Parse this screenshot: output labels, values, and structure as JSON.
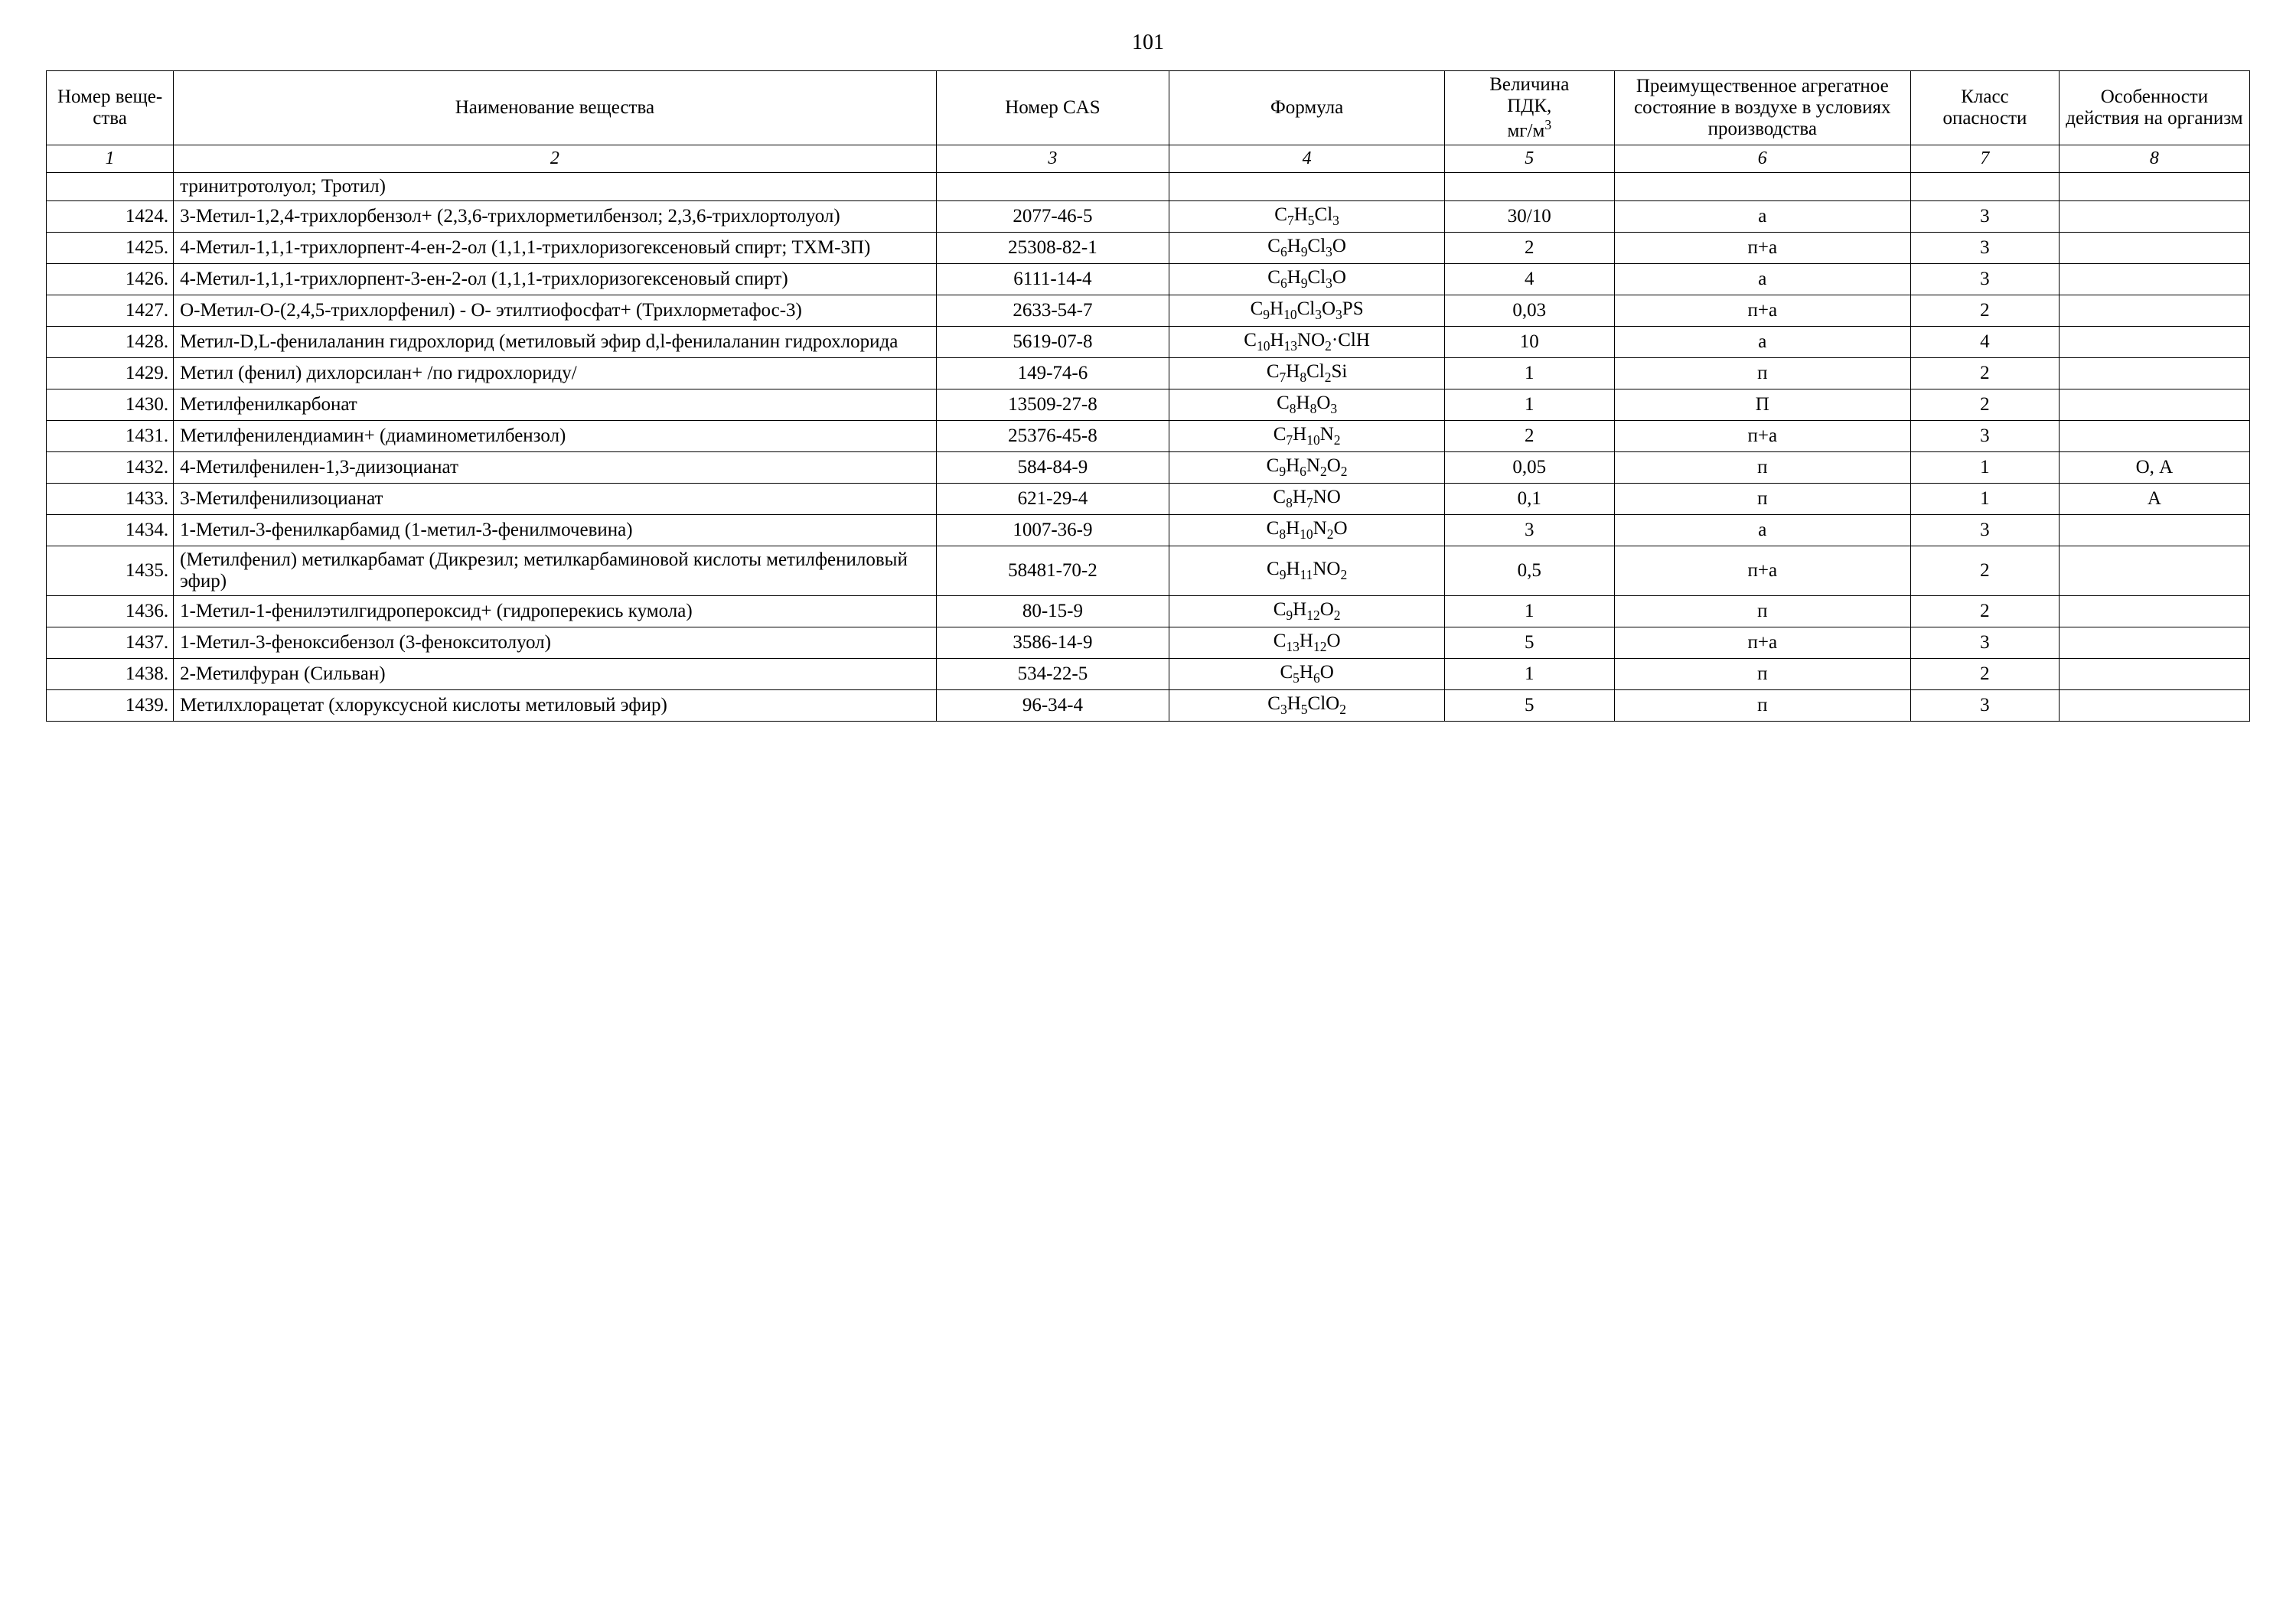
{
  "page_number": "101",
  "table": {
    "headers": {
      "col1": "Номер веще­ства",
      "col2": "Наименование вещества",
      "col3": "Номер CAS",
      "col4": "Формула",
      "col5_line1": "Величина",
      "col5_line2": "ПДК,",
      "col5_line3": "мг/м",
      "col5_sup": "3",
      "col6": "Преимущественное агрегатное состояние в воздухе в условиях производства",
      "col7": "Класс опасности",
      "col8": "Особенности действия на организм"
    },
    "colnums": [
      "1",
      "2",
      "3",
      "4",
      "5",
      "6",
      "7",
      "8"
    ],
    "rows": [
      {
        "n": "",
        "name": "тринитротолуол; Тротил)",
        "cas": "",
        "formula": "",
        "pdk": "",
        "state": "",
        "class": "",
        "eff": ""
      },
      {
        "n": "1424.",
        "name": "3-Метил-1,2,4-трихлорбензол+ (2,3,6-трихлорметилбензол; 2,3,6-трихлортолуол)",
        "cas": "2077-46-5",
        "formula": "C<sub>7</sub>H<sub>5</sub>Cl<sub>3</sub>",
        "pdk": "30/10",
        "state": "а",
        "class": "3",
        "eff": ""
      },
      {
        "n": "1425.",
        "name": "4-Метил-1,1,1-трихлорпент-4-ен-2-ол (1,1,1-трихлоризогексеновый спирт; ТХМ-3П)",
        "cas": "25308-82-1",
        "formula": "C<sub>6</sub>H<sub>9</sub>Cl<sub>3</sub>O",
        "pdk": "2",
        "state": "п+а",
        "class": "3",
        "eff": ""
      },
      {
        "n": "1426.",
        "name": "4-Метил-1,1,1-трихлорпент-3-ен-2-ол (1,1,1-трихлоризогексеновый спирт)",
        "cas": "6111-14-4",
        "formula": "C<sub>6</sub>H<sub>9</sub>Cl<sub>3</sub>O",
        "pdk": "4",
        "state": "а",
        "class": "3",
        "eff": ""
      },
      {
        "n": "1427.",
        "name": "О-Метил-О-(2,4,5-трихлорфенил) - О- этилтио­фосфат+ (Трихлорметафос-3)",
        "cas": "2633-54-7",
        "formula": "C<sub>9</sub>H<sub>10</sub>Cl<sub>3</sub>O<sub>3</sub>PS",
        "pdk": "0,03",
        "state": "п+а",
        "class": "2",
        "eff": ""
      },
      {
        "n": "1428.",
        "name": "Метил-D,L-фенилаланин гидрохлорид (метиловый эфир d,l-фенилаланин гидрохлорида",
        "cas": "5619-07-8",
        "formula": "C<sub>10</sub>H<sub>13</sub>NO<sub>2</sub>·ClH",
        "pdk": "10",
        "state": "а",
        "class": "4",
        "eff": ""
      },
      {
        "n": "1429.",
        "name": "Метил (фенил) дихлорсилан+ /по гидрохлориду/",
        "cas": "149-74-6",
        "formula": "C<sub>7</sub>H<sub>8</sub>Cl<sub>2</sub>Si",
        "pdk": "1",
        "state": "п",
        "class": "2",
        "eff": ""
      },
      {
        "n": "1430.",
        "name": "Метилфенилкарбонат",
        "cas": "13509-27-8",
        "formula": "C<sub>8</sub>H<sub>8</sub>O<sub>3</sub>",
        "pdk": "1",
        "state": "П",
        "class": "2",
        "eff": ""
      },
      {
        "n": "1431.",
        "name": "Метилфенилендиамин+ (диаминометилбензол)",
        "cas": "25376-45-8",
        "formula": "C<sub>7</sub>H<sub>10</sub>N<sub>2</sub>",
        "pdk": "2",
        "state": "п+а",
        "class": "3",
        "eff": ""
      },
      {
        "n": "1432.",
        "name": "4-Метилфенилен-1,3-диизоцианат",
        "cas": "584-84-9",
        "formula": "C<sub>9</sub>H<sub>6</sub>N<sub>2</sub>O<sub>2</sub>",
        "pdk": "0,05",
        "state": "п",
        "class": "1",
        "eff": "О, А"
      },
      {
        "n": "1433.",
        "name": "3-Метилфенилизоцианат",
        "cas": "621-29-4",
        "formula": "C<sub>8</sub>H<sub>7</sub>NO",
        "pdk": "0,1",
        "state": "п",
        "class": "1",
        "eff": "А"
      },
      {
        "n": "1434.",
        "name": "1-Метил-3-фенилкарбамид (1-метил-3-фенилмочевина)",
        "cas": "1007-36-9",
        "formula": "C<sub>8</sub>H<sub>10</sub>N<sub>2</sub>O",
        "pdk": "3",
        "state": "а",
        "class": "3",
        "eff": ""
      },
      {
        "n": "1435.",
        "name": "(Метилфенил) метилкарбамат (Дикрезил; метилкарбаминовой кислоты метил­фениловый эфир)",
        "cas": "58481-70-2",
        "formula": "C<sub>9</sub>H<sub>11</sub>NO<sub>2</sub>",
        "pdk": "0,5",
        "state": "п+а",
        "class": "2",
        "eff": ""
      },
      {
        "n": "1436.",
        "name": "1-Метил-1-фенилэтилгидропероксид+ (гидроперекись кумола)",
        "cas": "80-15-9",
        "formula": "C<sub>9</sub>H<sub>12</sub>O<sub>2</sub>",
        "pdk": "1",
        "state": "п",
        "class": "2",
        "eff": ""
      },
      {
        "n": "1437.",
        "name": "1-Метил-3-феноксибензол (3-фенокситолуол)",
        "cas": "3586-14-9",
        "formula": "C<sub>13</sub>H<sub>12</sub>O",
        "pdk": "5",
        "state": "п+а",
        "class": "3",
        "eff": ""
      },
      {
        "n": "1438.",
        "name": "2-Метилфуран (Сильван)",
        "cas": "534-22-5",
        "formula": "C<sub>5</sub>H<sub>6</sub>O",
        "pdk": "1",
        "state": "п",
        "class": "2",
        "eff": ""
      },
      {
        "n": "1439.",
        "name": "Метилхлорацетат (хлоруксусной кислоты метиловый эфир)",
        "cas": "96-34-4",
        "formula": "C<sub>3</sub>H<sub>5</sub>ClO<sub>2</sub>",
        "pdk": "5",
        "state": "п",
        "class": "3",
        "eff": ""
      }
    ]
  }
}
